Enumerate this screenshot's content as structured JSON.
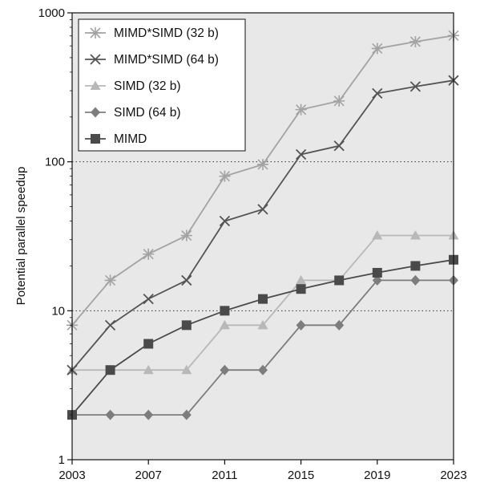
{
  "chart_data": {
    "type": "line",
    "title": "",
    "xlabel": "",
    "ylabel": "Potential parallel speedup",
    "yscale": "log",
    "ylim": [
      1,
      1000
    ],
    "xlim": [
      2003,
      2023
    ],
    "x_tick_labels": [
      "2003",
      "2007",
      "2011",
      "2015",
      "2019",
      "2023"
    ],
    "y_tick_labels": [
      "1",
      "10",
      "100",
      "1000"
    ],
    "x": [
      2003,
      2005,
      2007,
      2009,
      2011,
      2013,
      2015,
      2017,
      2019,
      2021,
      2023
    ],
    "legend_position": "top-left",
    "grid": "dotted horizontal lines at 10 and 100",
    "plot_background": "#e8e8e8",
    "series": [
      {
        "name": "MIMD*SIMD (32 b)",
        "marker": "asterisk",
        "color": "#a3a3a3",
        "values": [
          8,
          16,
          24,
          32,
          80,
          96,
          224,
          256,
          576,
          640,
          704
        ]
      },
      {
        "name": "MIMD*SIMD (64 b)",
        "marker": "x",
        "color": "#545454",
        "values": [
          4,
          8,
          12,
          16,
          40,
          48,
          112,
          128,
          288,
          320,
          352
        ]
      },
      {
        "name": "SIMD (32 b)",
        "marker": "triangle",
        "color": "#b8b8b8",
        "values": [
          4,
          4,
          4,
          4,
          8,
          8,
          16,
          16,
          32,
          32,
          32
        ]
      },
      {
        "name": "SIMD (64 b)",
        "marker": "diamond",
        "color": "#7d7d7d",
        "values": [
          2,
          2,
          2,
          2,
          4,
          4,
          8,
          8,
          16,
          16,
          16
        ]
      },
      {
        "name": "MIMD",
        "marker": "square",
        "color": "#4a4a4a",
        "values": [
          2,
          4,
          6,
          8,
          10,
          12,
          14,
          16,
          18,
          20,
          22
        ]
      }
    ]
  }
}
